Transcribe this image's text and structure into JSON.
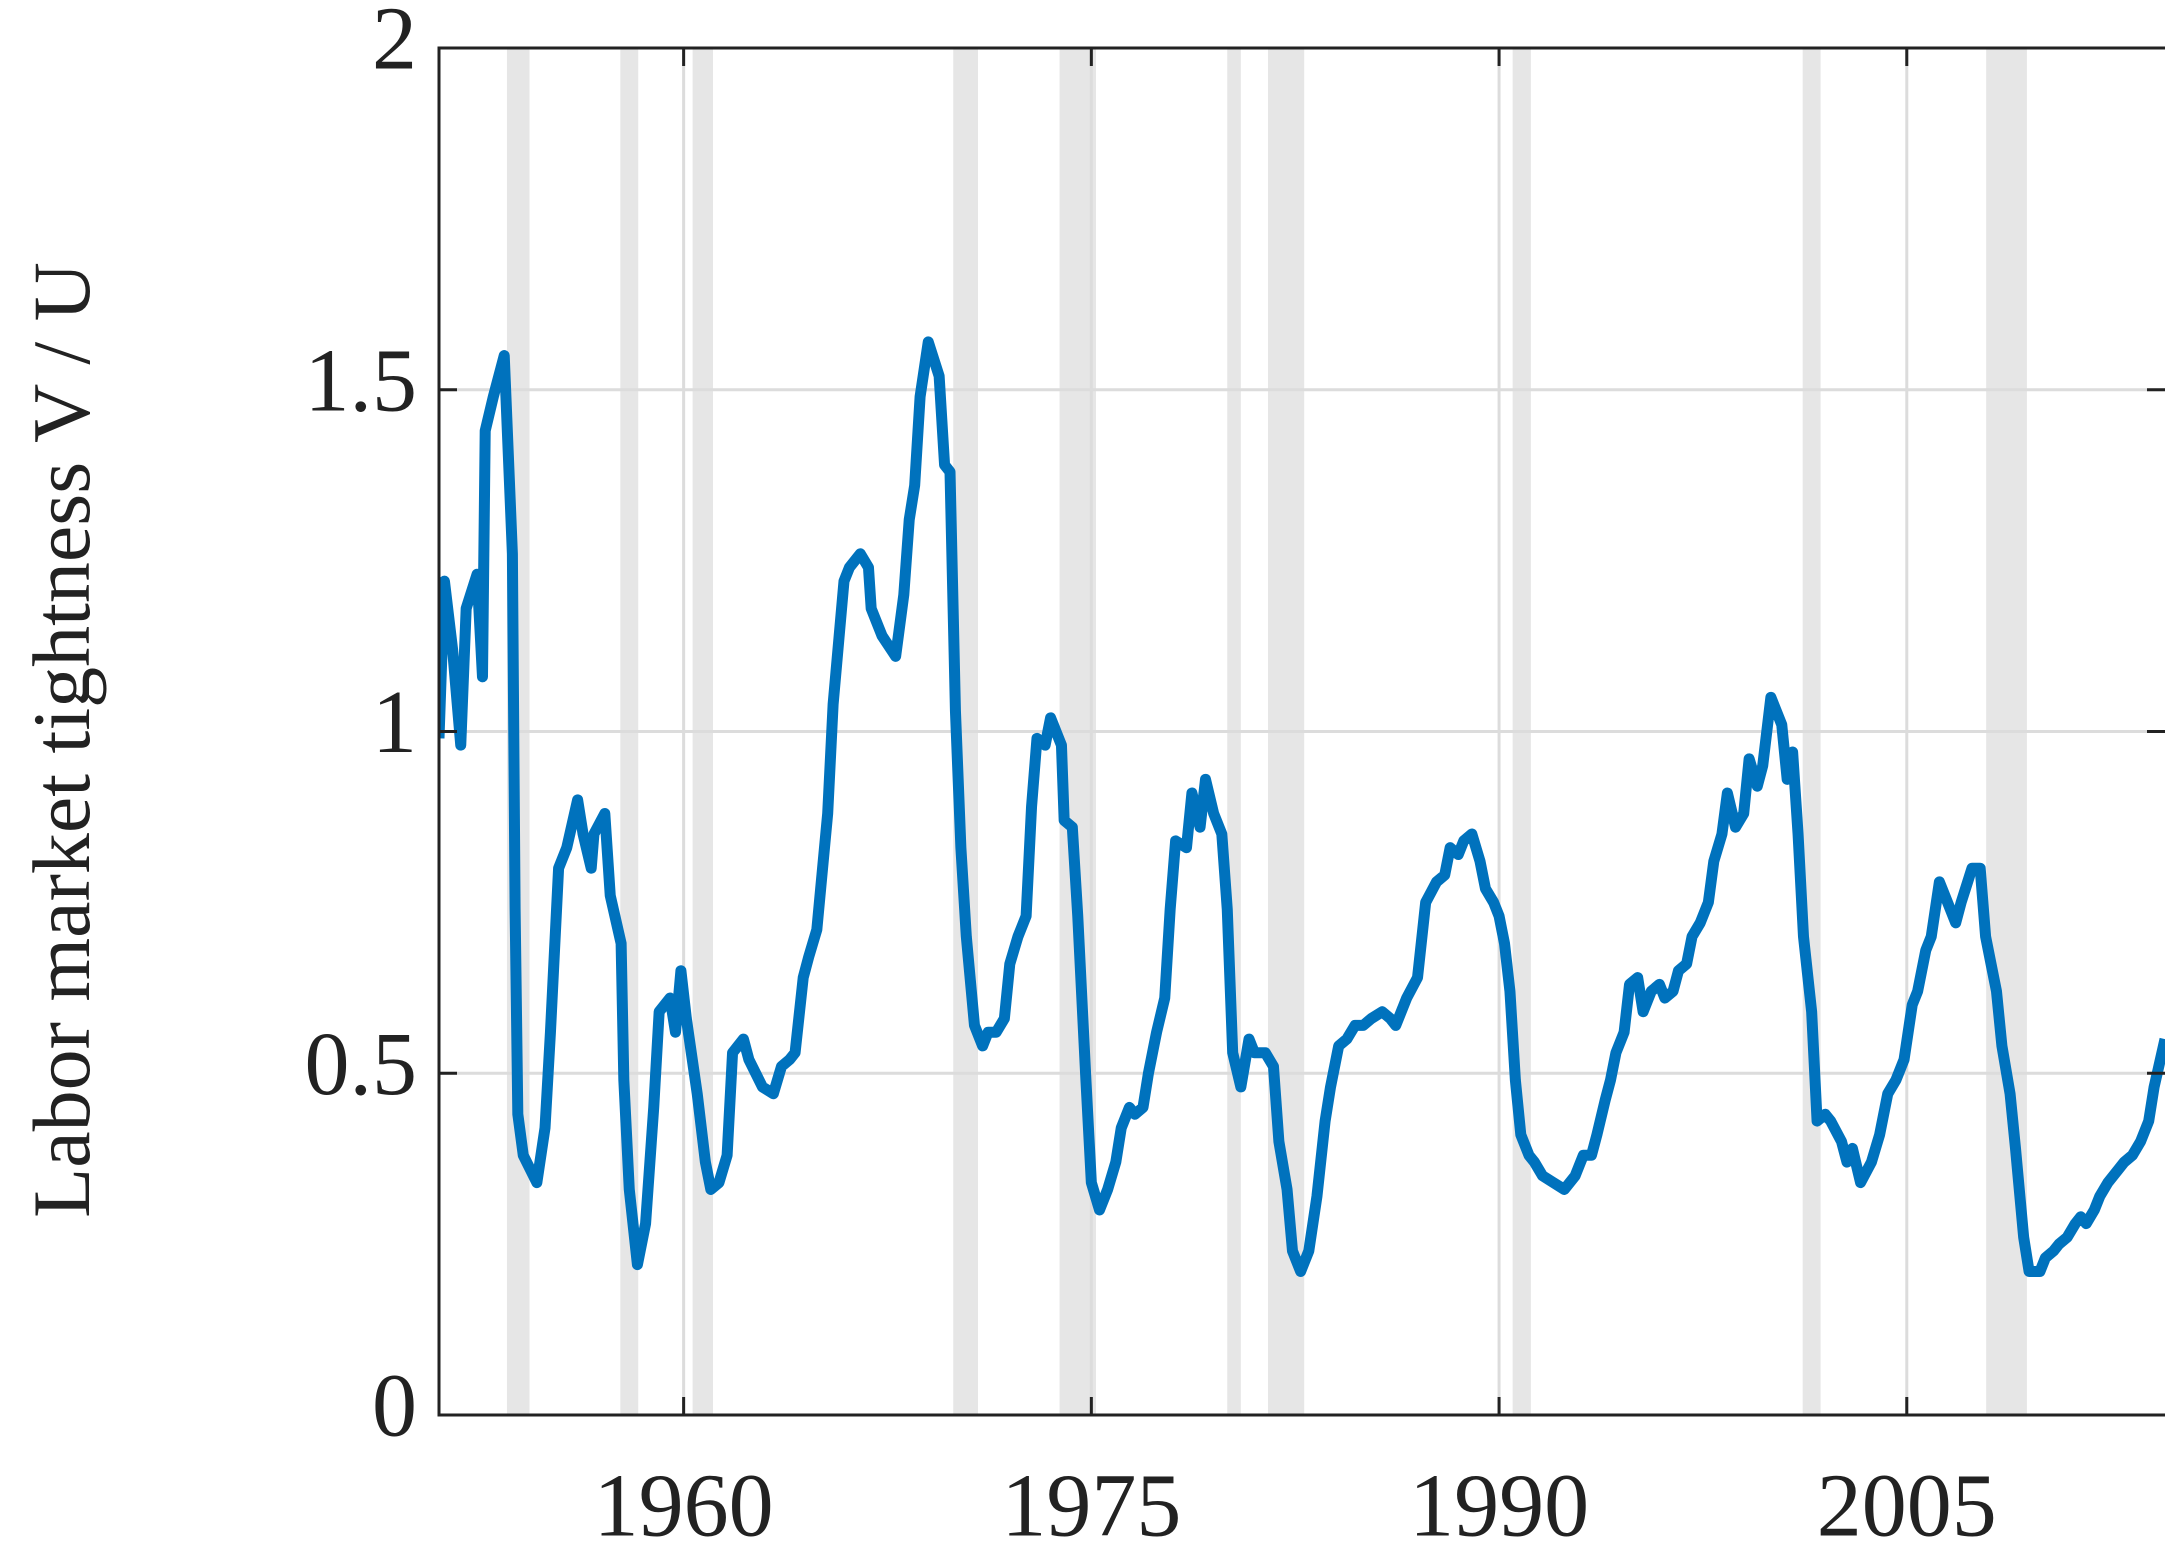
{
  "chart_data": {
    "type": "line",
    "ylabel": "Labor market tightness V / U",
    "xlim": [
      1951,
      2014.5
    ],
    "ylim": [
      0,
      2
    ],
    "xticks": [
      1960,
      1975,
      1990,
      2005
    ],
    "yticks": [
      0,
      0.5,
      1,
      1.5,
      2
    ],
    "grid": true,
    "shaded_spans": [
      [
        1953.5,
        1954.33
      ],
      [
        1957.67,
        1958.33
      ],
      [
        1960.33,
        1961.08
      ],
      [
        1969.92,
        1970.83
      ],
      [
        1973.83,
        1975.17
      ],
      [
        1980.0,
        1980.5
      ],
      [
        1981.5,
        1982.83
      ],
      [
        1990.5,
        1991.17
      ],
      [
        2001.17,
        2001.83
      ],
      [
        2007.92,
        2009.42
      ]
    ],
    "shade_color": "#e6e6e6",
    "x": [
      1951.0,
      1951.2,
      1951.5,
      1951.8,
      1952.0,
      1952.4,
      1952.6,
      1952.7,
      1953.0,
      1953.4,
      1953.7,
      1953.8,
      1953.9,
      1954.1,
      1954.6,
      1954.9,
      1955.1,
      1955.4,
      1955.7,
      1956.1,
      1956.3,
      1956.6,
      1956.7,
      1957.1,
      1957.3,
      1957.7,
      1957.8,
      1958.0,
      1958.3,
      1958.6,
      1958.9,
      1959.1,
      1959.5,
      1959.7,
      1959.9,
      1960.1,
      1960.5,
      1960.8,
      1961.0,
      1961.3,
      1961.6,
      1961.8,
      1962.2,
      1962.4,
      1962.9,
      1963.3,
      1963.6,
      1963.9,
      1964.1,
      1964.4,
      1964.6,
      1964.9,
      1965.3,
      1965.5,
      1965.9,
      1966.1,
      1966.5,
      1966.8,
      1966.9,
      1967.2,
      1967.3,
      1967.8,
      1968.1,
      1968.3,
      1968.5,
      1968.7,
      1969.0,
      1969.4,
      1969.6,
      1969.8,
      1970.0,
      1970.2,
      1970.4,
      1970.7,
      1971.0,
      1971.2,
      1971.5,
      1971.8,
      1972.0,
      1972.3,
      1972.6,
      1972.8,
      1973.0,
      1973.3,
      1973.5,
      1973.9,
      1974.0,
      1974.3,
      1974.5,
      1974.8,
      1975.0,
      1975.3,
      1975.6,
      1975.9,
      1976.1,
      1976.4,
      1976.6,
      1976.9,
      1977.1,
      1977.4,
      1977.7,
      1977.9,
      1978.1,
      1978.5,
      1978.7,
      1979.0,
      1979.2,
      1979.5,
      1979.8,
      1980.0,
      1980.2,
      1980.5,
      1980.8,
      1981.0,
      1981.4,
      1981.7,
      1981.9,
      1982.2,
      1982.4,
      1982.7,
      1983.0,
      1983.3,
      1983.6,
      1983.8,
      1984.1,
      1984.4,
      1984.7,
      1985.0,
      1985.3,
      1985.7,
      1986.0,
      1986.2,
      1986.6,
      1987.0,
      1987.3,
      1987.7,
      1988.0,
      1988.2,
      1988.5,
      1988.7,
      1989.0,
      1989.3,
      1989.5,
      1989.8,
      1990.0,
      1990.2,
      1990.4,
      1990.6,
      1990.8,
      1991.1,
      1991.3,
      1991.6,
      1992.0,
      1992.4,
      1992.8,
      1993.1,
      1993.4,
      1993.6,
      1993.9,
      1994.1,
      1994.3,
      1994.6,
      1994.8,
      1995.1,
      1995.3,
      1995.6,
      1995.9,
      1996.1,
      1996.4,
      1996.6,
      1996.9,
      1997.1,
      1997.4,
      1997.7,
      1997.9,
      1998.2,
      1998.4,
      1998.7,
      1999.0,
      1999.2,
      1999.5,
      1999.7,
      2000.0,
      2000.4,
      2000.6,
      2000.8,
      2001.0,
      2001.2,
      2001.5,
      2001.7,
      2002.0,
      2002.2,
      2002.6,
      2002.8,
      2003.0,
      2003.3,
      2003.7,
      2004.0,
      2004.3,
      2004.6,
      2004.9,
      2005.2,
      2005.4,
      2005.7,
      2005.9,
      2006.2,
      2006.5,
      2006.8,
      2007.0,
      2007.4,
      2007.7,
      2007.9,
      2008.1,
      2008.3,
      2008.5,
      2008.8,
      2009.0,
      2009.3,
      2009.5,
      2009.9,
      2010.1,
      2010.4,
      2010.6,
      2010.9,
      2011.2,
      2011.4,
      2011.6,
      2011.9,
      2012.1,
      2012.4,
      2012.8,
      2013.0,
      2013.3,
      2013.6,
      2013.9,
      2014.1,
      2014.5
    ],
    "series": [
      {
        "color": "#0072bd",
        "values": [
          0.99,
          1.22,
          1.12,
          0.98,
          1.18,
          1.23,
          1.08,
          1.44,
          1.49,
          1.55,
          1.26,
          0.74,
          0.44,
          0.38,
          0.34,
          0.42,
          0.56,
          0.8,
          0.83,
          0.9,
          0.85,
          0.8,
          0.85,
          0.88,
          0.76,
          0.69,
          0.49,
          0.33,
          0.22,
          0.28,
          0.45,
          0.59,
          0.61,
          0.56,
          0.65,
          0.58,
          0.47,
          0.37,
          0.33,
          0.34,
          0.38,
          0.53,
          0.55,
          0.52,
          0.48,
          0.47,
          0.51,
          0.52,
          0.53,
          0.64,
          0.67,
          0.71,
          0.88,
          1.04,
          1.22,
          1.24,
          1.26,
          1.24,
          1.18,
          1.15,
          1.14,
          1.11,
          1.2,
          1.31,
          1.36,
          1.49,
          1.57,
          1.52,
          1.39,
          1.38,
          1.03,
          0.83,
          0.7,
          0.57,
          0.54,
          0.56,
          0.56,
          0.58,
          0.66,
          0.7,
          0.73,
          0.89,
          0.99,
          0.98,
          1.02,
          0.98,
          0.87,
          0.86,
          0.73,
          0.49,
          0.34,
          0.3,
          0.33,
          0.37,
          0.42,
          0.45,
          0.44,
          0.45,
          0.5,
          0.56,
          0.61,
          0.74,
          0.84,
          0.83,
          0.91,
          0.86,
          0.93,
          0.88,
          0.85,
          0.74,
          0.53,
          0.48,
          0.55,
          0.53,
          0.53,
          0.51,
          0.4,
          0.33,
          0.24,
          0.21,
          0.24,
          0.32,
          0.43,
          0.48,
          0.54,
          0.55,
          0.57,
          0.57,
          0.58,
          0.59,
          0.58,
          0.57,
          0.61,
          0.64,
          0.75,
          0.78,
          0.79,
          0.83,
          0.82,
          0.84,
          0.85,
          0.81,
          0.77,
          0.75,
          0.73,
          0.69,
          0.62,
          0.49,
          0.41,
          0.38,
          0.37,
          0.35,
          0.34,
          0.33,
          0.35,
          0.38,
          0.38,
          0.41,
          0.46,
          0.49,
          0.53,
          0.56,
          0.63,
          0.64,
          0.59,
          0.62,
          0.63,
          0.61,
          0.62,
          0.65,
          0.66,
          0.7,
          0.72,
          0.75,
          0.81,
          0.85,
          0.91,
          0.86,
          0.88,
          0.96,
          0.92,
          0.95,
          1.05,
          1.01,
          0.93,
          0.97,
          0.85,
          0.7,
          0.59,
          0.43,
          0.44,
          0.43,
          0.4,
          0.37,
          0.39,
          0.34,
          0.37,
          0.41,
          0.47,
          0.49,
          0.52,
          0.6,
          0.62,
          0.68,
          0.7,
          0.78,
          0.75,
          0.72,
          0.75,
          0.8,
          0.8,
          0.7,
          0.66,
          0.62,
          0.54,
          0.47,
          0.39,
          0.26,
          0.21,
          0.21,
          0.23,
          0.24,
          0.25,
          0.26,
          0.28,
          0.29,
          0.28,
          0.3,
          0.32,
          0.34,
          0.36,
          0.37,
          0.38,
          0.4,
          0.43,
          0.48,
          0.55
        ]
      }
    ]
  }
}
